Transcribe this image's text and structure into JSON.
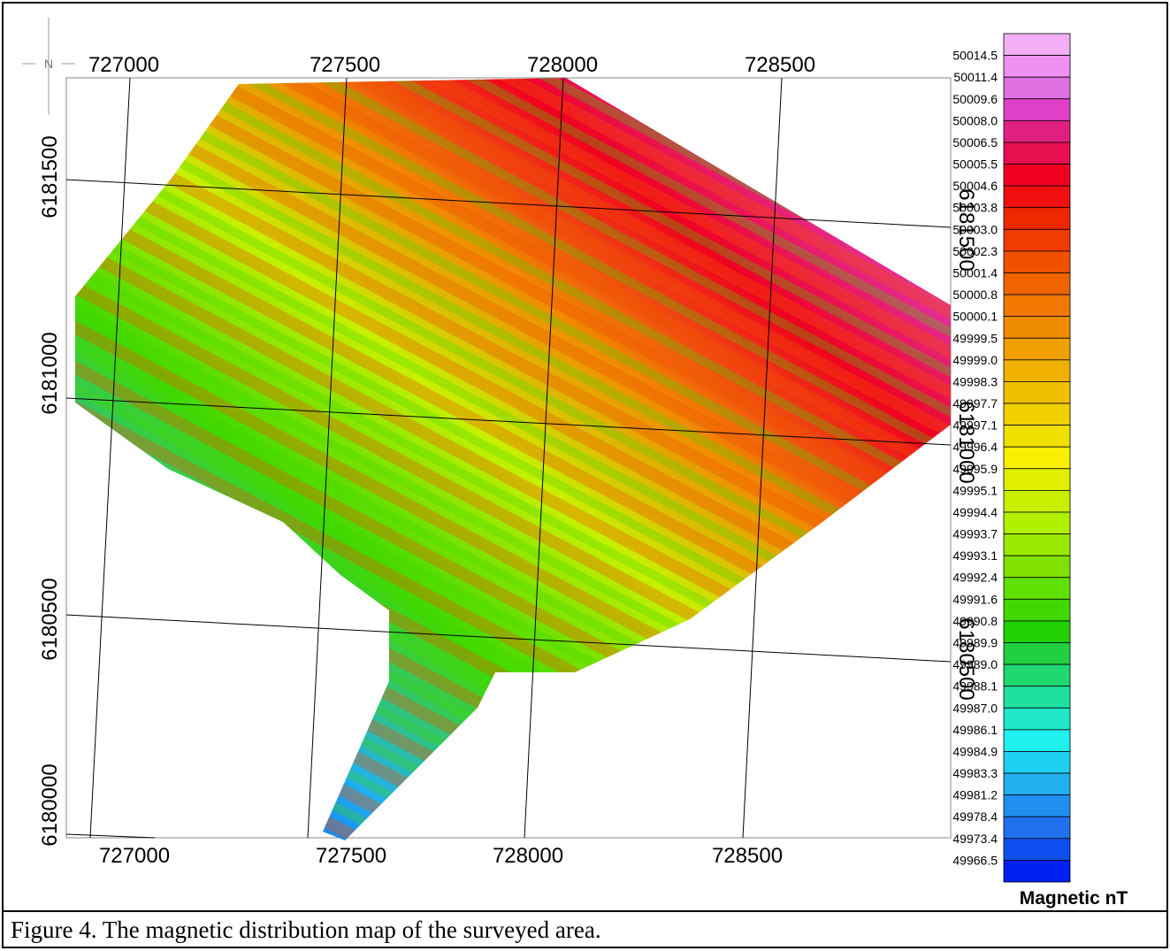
{
  "north": "N",
  "axes": {
    "top": [
      "727000",
      "727500",
      "728000",
      "728500"
    ],
    "bottom": [
      "727000",
      "727500",
      "728000",
      "728500"
    ],
    "left": [
      "6181500",
      "6181000",
      "6180500",
      "6180000"
    ],
    "right": [
      "6181500",
      "6181000",
      "6180500"
    ]
  },
  "legend": {
    "title": "Magnetic nT",
    "labels": [
      "50014.5",
      "50011.4",
      "50009.6",
      "50008.0",
      "50006.5",
      "50005.5",
      "50004.6",
      "50003.8",
      "50003.0",
      "50002.3",
      "50001.4",
      "50000.8",
      "50000.1",
      "49999.5",
      "49999.0",
      "49998.3",
      "49997.7",
      "49997.1",
      "49996.4",
      "49995.9",
      "49995.1",
      "49994.4",
      "49993.7",
      "49993.1",
      "49992.4",
      "49991.6",
      "49990.8",
      "49989.9",
      "49989.0",
      "49988.1",
      "49987.0",
      "49986.1",
      "49984.9",
      "49983.3",
      "49981.2",
      "49978.4",
      "49973.4",
      "49966.5"
    ],
    "colors": [
      "#f4b0f4",
      "#f090f0",
      "#e070e0",
      "#e040c8",
      "#e02080",
      "#e81050",
      "#f00020",
      "#f01010",
      "#f02800",
      "#f03c00",
      "#f05000",
      "#f06400",
      "#f07800",
      "#f08c00",
      "#f0a000",
      "#f0b000",
      "#f0c000",
      "#f0d000",
      "#f0e000",
      "#f8f000",
      "#e0f000",
      "#c8f000",
      "#b0f000",
      "#98e800",
      "#80e000",
      "#60e000",
      "#40d800",
      "#20d000",
      "#20d040",
      "#20d870",
      "#20e0a0",
      "#20e8c8",
      "#20f0f0",
      "#20d0f0",
      "#20b0f0",
      "#2090f0",
      "#2070f0",
      "#1050f0",
      "#0020f0"
    ]
  },
  "caption": "Figure 4. The magnetic distribution map of the surveyed area."
}
